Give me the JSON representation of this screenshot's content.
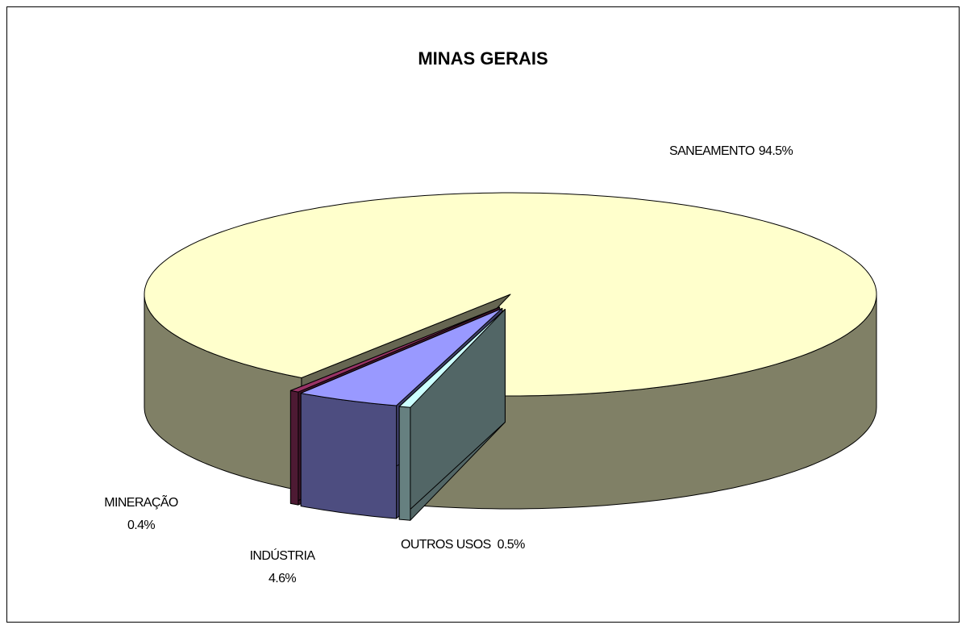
{
  "chart_data": {
    "type": "pie",
    "title": "MINAS GERAIS",
    "categories": [
      "SANEAMENTO",
      "MINERAÇÃO",
      "INDÚSTRIA",
      "OUTROS USOS"
    ],
    "values": [
      94.5,
      0.4,
      4.6,
      0.5
    ],
    "value_labels": [
      "94.5%",
      "0.4%",
      "4.6%",
      "0.5%"
    ],
    "colors": [
      "#ffffcc",
      "#993366",
      "#9999ff",
      "#ccffff"
    ],
    "three_d": true
  }
}
